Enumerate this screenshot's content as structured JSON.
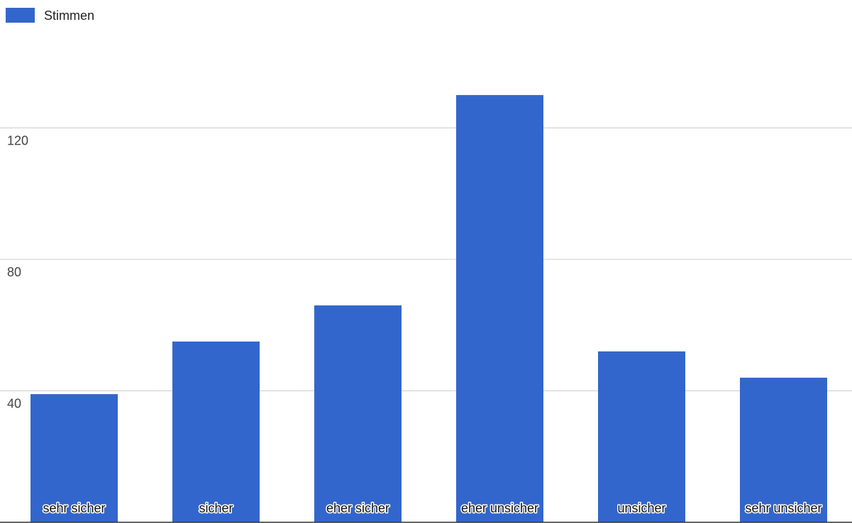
{
  "chart_data": {
    "type": "bar",
    "legend": {
      "position": "top-left",
      "entries": [
        "Stimmen"
      ]
    },
    "categories": [
      "sehr sicher",
      "sicher",
      "eher sicher",
      "eher unsicher",
      "unsicher",
      "sehr unsicher"
    ],
    "series": [
      {
        "name": "Stimmen",
        "values": [
          39,
          55,
          66,
          130,
          52,
          44
        ],
        "color": "#3366cc"
      }
    ],
    "y_ticks": [
      40,
      80,
      120
    ],
    "ylim": [
      0,
      140
    ],
    "grid": true,
    "gridline_color": "#cccccc",
    "axis_color": "#333333"
  }
}
